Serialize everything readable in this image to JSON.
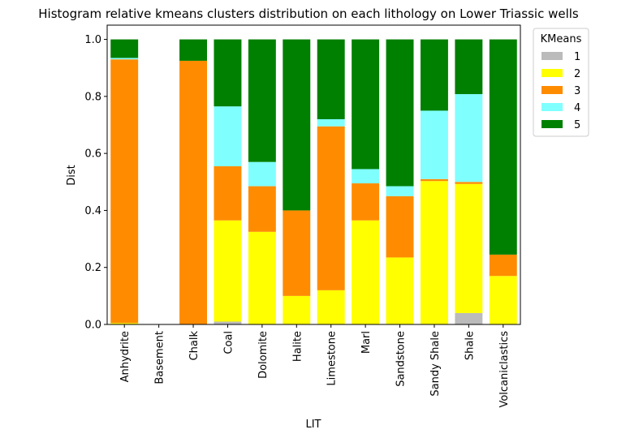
{
  "chart_data": {
    "type": "bar",
    "stacked": true,
    "title": "Histogram relative kmeans clusters distribution on each lithology on Lower Triassic wells",
    "xlabel": "LIT",
    "ylabel": "Dist",
    "ylim": [
      0,
      1.05
    ],
    "yticks": [
      "0.0",
      "0.2",
      "0.4",
      "0.6",
      "0.8",
      "1.0"
    ],
    "grid": false,
    "legend": {
      "title": "KMeans",
      "placement": "outside-top-right"
    },
    "categories": [
      "Anhydrite",
      "Basement",
      "Chalk",
      "Coal",
      "Dolomite",
      "Halite",
      "Limestone",
      "Marl",
      "Sandstone",
      "Sandy Shale",
      "Shale",
      "Volcaniclastics"
    ],
    "series": [
      {
        "name": "1",
        "color": "#bbbbbb",
        "values": [
          0.0,
          0.0,
          0.0,
          0.01,
          0.0,
          0.0,
          0.0,
          0.0,
          0.0,
          0.0,
          0.04,
          0.0
        ]
      },
      {
        "name": "2",
        "color": "#ffff00",
        "values": [
          0.005,
          0.0,
          0.0,
          0.355,
          0.325,
          0.1,
          0.12,
          0.365,
          0.235,
          0.503,
          0.453,
          0.17
        ]
      },
      {
        "name": "3",
        "color": "#ff8c00",
        "values": [
          0.925,
          0.0,
          0.925,
          0.19,
          0.16,
          0.3,
          0.575,
          0.13,
          0.215,
          0.007,
          0.007,
          0.075
        ]
      },
      {
        "name": "4",
        "color": "#80ffff",
        "values": [
          0.005,
          0.0,
          0.0,
          0.21,
          0.085,
          0.0,
          0.025,
          0.05,
          0.035,
          0.24,
          0.308,
          0.0
        ]
      },
      {
        "name": "5",
        "color": "#008000",
        "values": [
          0.065,
          0.0,
          0.075,
          0.235,
          0.43,
          0.6,
          0.28,
          0.455,
          0.515,
          0.25,
          0.192,
          0.755
        ]
      }
    ]
  }
}
